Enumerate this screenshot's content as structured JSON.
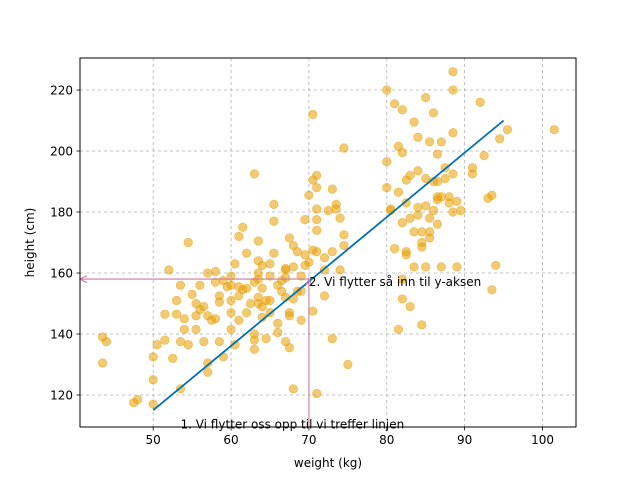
{
  "chart_data": {
    "type": "scatter",
    "xlabel": "weight (kg)",
    "ylabel": "height (cm)",
    "xlim": [
      40.6,
      104.3
    ],
    "ylim": [
      109.5,
      230.5
    ],
    "xticks": [
      50,
      60,
      70,
      80,
      90,
      100
    ],
    "yticks": [
      120,
      140,
      160,
      180,
      200,
      220
    ],
    "grid": true,
    "colors": {
      "points": "#E69F00",
      "line": "#0072B2",
      "arrow": "#CC79A7",
      "grid": "#b0b0b0"
    },
    "series": [
      {
        "name": "data",
        "kind": "scatter",
        "points": [
          [
            43.5,
            139
          ],
          [
            44,
            137.5
          ],
          [
            43.5,
            130.5
          ],
          [
            47.5,
            117.5
          ],
          [
            48,
            118.5
          ],
          [
            50,
            117
          ],
          [
            50,
            125
          ],
          [
            50,
            132.5
          ],
          [
            50.5,
            136.5
          ],
          [
            51.5,
            138
          ],
          [
            51.5,
            146.5
          ],
          [
            52,
            161
          ],
          [
            52.5,
            132
          ],
          [
            53,
            151
          ],
          [
            53,
            146.5
          ],
          [
            53.5,
            122
          ],
          [
            53.5,
            156
          ],
          [
            53.5,
            137.5
          ],
          [
            54,
            145
          ],
          [
            54,
            141.5
          ],
          [
            54.5,
            136.5
          ],
          [
            54.5,
            170
          ],
          [
            55,
            153
          ],
          [
            55.5,
            146
          ],
          [
            55.5,
            150
          ],
          [
            55.5,
            141.5
          ],
          [
            56,
            148
          ],
          [
            56,
            156
          ],
          [
            56.5,
            137.5
          ],
          [
            56.5,
            149
          ],
          [
            57,
            146
          ],
          [
            57,
            130.5
          ],
          [
            57,
            127.5
          ],
          [
            57,
            160
          ],
          [
            57.5,
            144.5
          ],
          [
            58,
            160.5
          ],
          [
            58,
            157
          ],
          [
            58,
            145
          ],
          [
            58.5,
            152.5
          ],
          [
            58.5,
            150.5
          ],
          [
            58.5,
            137.5
          ],
          [
            59,
            132.5
          ],
          [
            59,
            157.5
          ],
          [
            59.5,
            155.5
          ],
          [
            60,
            159
          ],
          [
            60,
            156
          ],
          [
            60,
            151
          ],
          [
            60,
            147
          ],
          [
            60,
            141.5
          ],
          [
            60.5,
            136.5
          ],
          [
            60.5,
            163
          ],
          [
            61,
            155.5
          ],
          [
            61,
            172
          ],
          [
            61,
            152.5
          ],
          [
            61,
            144.5
          ],
          [
            61.5,
            175
          ],
          [
            61.5,
            154.5
          ],
          [
            62,
            155
          ],
          [
            62,
            166.5
          ],
          [
            62,
            147
          ],
          [
            62.5,
            150
          ],
          [
            63,
            135
          ],
          [
            63,
            138
          ],
          [
            63,
            192.5
          ],
          [
            63,
            157
          ],
          [
            63,
            140
          ],
          [
            63.5,
            170.5
          ],
          [
            63.5,
            164
          ],
          [
            63.5,
            160
          ],
          [
            63.5,
            158
          ],
          [
            63.5,
            152
          ],
          [
            63.5,
            150
          ],
          [
            64,
            162.5
          ],
          [
            64,
            155
          ],
          [
            64,
            149
          ],
          [
            64,
            145.5
          ],
          [
            64.5,
            138.5
          ],
          [
            64.5,
            151
          ],
          [
            65,
            151
          ],
          [
            65,
            159
          ],
          [
            65,
            147
          ],
          [
            65,
            163
          ],
          [
            65.5,
            182.5
          ],
          [
            65.5,
            177
          ],
          [
            65.5,
            166.5
          ],
          [
            66,
            140.5
          ],
          [
            66,
            156
          ],
          [
            66,
            143.5
          ],
          [
            66.5,
            157.5
          ],
          [
            66.5,
            154
          ],
          [
            67,
            152
          ],
          [
            67,
            158.5
          ],
          [
            67,
            161
          ],
          [
            67,
            161.5
          ],
          [
            67,
            137.5
          ],
          [
            67.5,
            147
          ],
          [
            67.5,
            135.5
          ],
          [
            67.5,
            146
          ],
          [
            67.5,
            171.5
          ],
          [
            68,
            122
          ],
          [
            68,
            151.5
          ],
          [
            68,
            162
          ],
          [
            68,
            169
          ],
          [
            68.5,
            167
          ],
          [
            68.5,
            154
          ],
          [
            69,
            154
          ],
          [
            69,
            159
          ],
          [
            69,
            144.5
          ],
          [
            69.5,
            166
          ],
          [
            69.5,
            162.5
          ],
          [
            69.5,
            177.5
          ],
          [
            70,
            185.5
          ],
          [
            70,
            163.5
          ],
          [
            70.5,
            190.5
          ],
          [
            70.5,
            167.5
          ],
          [
            70.5,
            212
          ],
          [
            70.5,
            147.5
          ],
          [
            71,
            188
          ],
          [
            71,
            192
          ],
          [
            71,
            174
          ],
          [
            71,
            120.5
          ],
          [
            71,
            181
          ],
          [
            71,
            177.5
          ],
          [
            71,
            167
          ],
          [
            72,
            165
          ],
          [
            72,
            161
          ],
          [
            72,
            152.5
          ],
          [
            72.5,
            180.5
          ],
          [
            73,
            187.5
          ],
          [
            73,
            167
          ],
          [
            73,
            138.5
          ],
          [
            73.5,
            181
          ],
          [
            73.5,
            182.5
          ],
          [
            74,
            161
          ],
          [
            74,
            178
          ],
          [
            74.5,
            201
          ],
          [
            74.5,
            172.5
          ],
          [
            74.5,
            169
          ],
          [
            75,
            130
          ],
          [
            80,
            220
          ],
          [
            80,
            188
          ],
          [
            80,
            196.5
          ],
          [
            80.5,
            181
          ],
          [
            80.5,
            180.5
          ],
          [
            81,
            168
          ],
          [
            81,
            215.5
          ],
          [
            81.5,
            186.5
          ],
          [
            81.5,
            201.5
          ],
          [
            81.5,
            141.5
          ],
          [
            82,
            176.5
          ],
          [
            82,
            199.5
          ],
          [
            82,
            151.5
          ],
          [
            82,
            158
          ],
          [
            82,
            213.5
          ],
          [
            82.5,
            190.5
          ],
          [
            82.5,
            183
          ],
          [
            82.5,
            167
          ],
          [
            82.5,
            166
          ],
          [
            83,
            178
          ],
          [
            83,
            149
          ],
          [
            83,
            192
          ],
          [
            83.5,
            173.5
          ],
          [
            83.5,
            209.5
          ],
          [
            83.5,
            162
          ],
          [
            84,
            204.5
          ],
          [
            84,
            181.5
          ],
          [
            84,
            179
          ],
          [
            84,
            193.5
          ],
          [
            84.5,
            143
          ],
          [
            84.5,
            170
          ],
          [
            84.5,
            173.5
          ],
          [
            84.5,
            168.5
          ],
          [
            85,
            217.5
          ],
          [
            85,
            191
          ],
          [
            85,
            182
          ],
          [
            85,
            162
          ],
          [
            85.5,
            178
          ],
          [
            85.5,
            173.5
          ],
          [
            85.5,
            171.5
          ],
          [
            85.5,
            203
          ],
          [
            86,
            190
          ],
          [
            86,
            180.5
          ],
          [
            86,
            212.5
          ],
          [
            86.5,
            185
          ],
          [
            86.5,
            184
          ],
          [
            86.5,
            176
          ],
          [
            86.5,
            199
          ],
          [
            86.5,
            190
          ],
          [
            87,
            203
          ],
          [
            87,
            162
          ],
          [
            87,
            185
          ],
          [
            87.5,
            194.5
          ],
          [
            87.5,
            191
          ],
          [
            88,
            183
          ],
          [
            88,
            185
          ],
          [
            88.5,
            180
          ],
          [
            88.5,
            220
          ],
          [
            88.5,
            192.5
          ],
          [
            88.5,
            226
          ],
          [
            88.5,
            206
          ],
          [
            89,
            162
          ],
          [
            89,
            183.5
          ],
          [
            89.5,
            180.5
          ],
          [
            91,
            192.5
          ],
          [
            91,
            194.5
          ],
          [
            92,
            216
          ],
          [
            92.5,
            198.5
          ],
          [
            93,
            184.5
          ],
          [
            93.5,
            185.5
          ],
          [
            93.5,
            154.5
          ],
          [
            94,
            162.5
          ],
          [
            94.5,
            204
          ],
          [
            95.5,
            207
          ],
          [
            101.5,
            207
          ]
        ]
      },
      {
        "name": "fit",
        "kind": "line",
        "x": [
          50,
          95
        ],
        "y": [
          115,
          210
        ]
      }
    ],
    "annotations": [
      {
        "text": "1. Vi flytter oss opp til vi treffer linjen",
        "anchor": [
          53.5,
          110.5
        ],
        "arrow_from": [
          70,
          109.5
        ],
        "arrow_to": [
          70,
          158
        ]
      },
      {
        "text": "2. Vi flytter så inn til y-aksen",
        "anchor": [
          70,
          157.2
        ],
        "arrow_from": [
          70,
          158
        ],
        "arrow_to": [
          40.6,
          158
        ]
      }
    ]
  }
}
